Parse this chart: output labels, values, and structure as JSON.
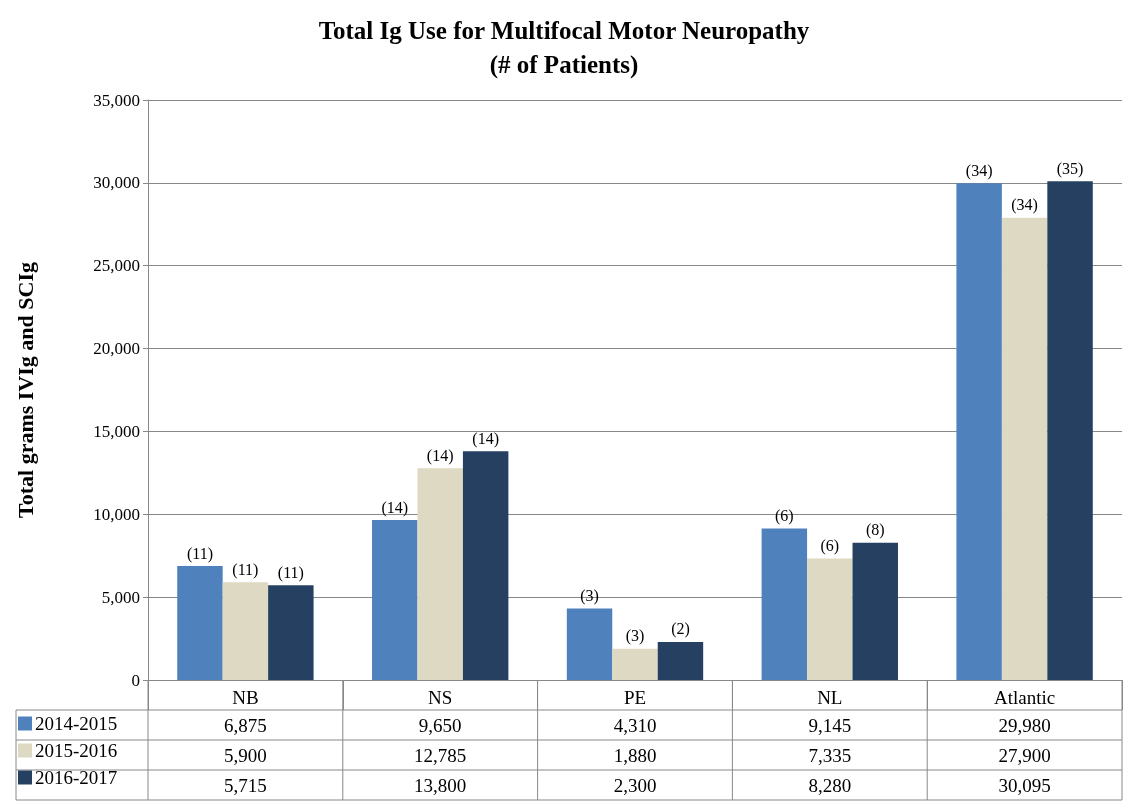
{
  "chart_data": {
    "type": "bar",
    "title": "Total Ig Use for Multifocal Motor Neuropathy\n(# of Patients)",
    "ylabel": "Total grams IVIg and SCIg",
    "categories": [
      "NB",
      "NS",
      "PE",
      "NL",
      "Atlantic"
    ],
    "series": [
      {
        "name": "2014-2015",
        "color": "#4f81bd",
        "values": [
          6875,
          9650,
          4310,
          9145,
          29980
        ],
        "value_labels": [
          "6,875",
          "9,650",
          "4,310",
          "9,145",
          "29,980"
        ]
      },
      {
        "name": "2015-2016",
        "color": "#ddd9c3",
        "values": [
          5900,
          12785,
          1880,
          7335,
          27900
        ],
        "value_labels": [
          "5,900",
          "12,785",
          "1,880",
          "7,335",
          "27,900"
        ]
      },
      {
        "name": "2016-2017",
        "color": "#254061",
        "values": [
          5715,
          13800,
          2300,
          8280,
          30095
        ],
        "value_labels": [
          "5,715",
          "13,800",
          "2,300",
          "8,280",
          "30,095"
        ]
      }
    ],
    "annotations": [
      "(11)",
      "(11)",
      "(11)",
      "(14)",
      "(14)",
      "(14)",
      "(3)",
      "(3)",
      "(2)",
      "(6)",
      "(6)",
      "(8)",
      "(34)",
      "(34)",
      "(35)"
    ],
    "ylim": [
      0,
      35000
    ],
    "yticks": [
      0,
      {
        "value": 5000,
        "label": "5,000"
      },
      {
        "value": 10000,
        "label": "10,000"
      },
      {
        "value": 15000,
        "label": "15,000"
      },
      {
        "value": 20000,
        "label": "20,000"
      },
      {
        "value": 25000,
        "label": "25,000"
      },
      {
        "value": 30000,
        "label": "30,000"
      },
      {
        "value": 35000,
        "label": "35,000"
      }
    ],
    "grid": "y",
    "legend": "bottom"
  }
}
